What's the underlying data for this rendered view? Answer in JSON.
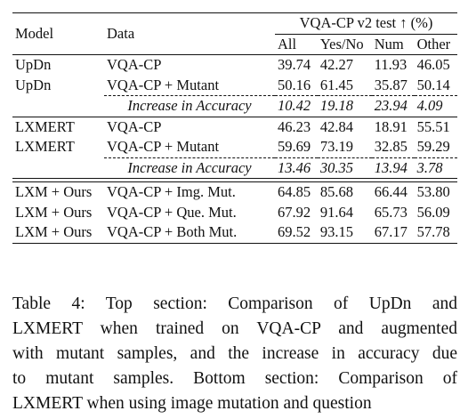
{
  "table": {
    "header": {
      "model": "Model",
      "data": "Data",
      "group": "VQA-CP v2 test ↑ (%)",
      "cols": [
        "All",
        "Yes/No",
        "Num",
        "Other"
      ]
    },
    "sections": [
      {
        "rows": [
          {
            "model": "UpDn",
            "data": "VQA-CP",
            "values": [
              "39.74",
              "42.27",
              "11.93",
              "46.05"
            ]
          },
          {
            "model": "UpDn",
            "data": "VQA-CP + Mutant",
            "values": [
              "50.16",
              "61.45",
              "35.87",
              "50.14"
            ]
          }
        ],
        "increase": {
          "label": "Increase in Accuracy",
          "values": [
            "10.42",
            "19.18",
            "23.94",
            "4.09"
          ]
        }
      },
      {
        "rows": [
          {
            "model": "LXMERT",
            "data": "VQA-CP",
            "values": [
              "46.23",
              "42.84",
              "18.91",
              "55.51"
            ]
          },
          {
            "model": "LXMERT",
            "data": "VQA-CP + Mutant",
            "values": [
              "59.69",
              "73.19",
              "32.85",
              "59.29"
            ]
          }
        ],
        "increase": {
          "label": "Increase in Accuracy",
          "values": [
            "13.46",
            "30.35",
            "13.94",
            "3.78"
          ]
        }
      },
      {
        "rows": [
          {
            "model": "LXM + Ours",
            "data": "VQA-CP + Img. Mut.",
            "values": [
              "64.85",
              "85.68",
              "66.44",
              "53.80"
            ]
          },
          {
            "model": "LXM + Ours",
            "data": "VQA-CP + Que. Mut.",
            "values": [
              "67.92",
              "91.64",
              "65.73",
              "56.09"
            ]
          },
          {
            "model": "LXM + Ours",
            "data": "VQA-CP + Both Mut.",
            "values": [
              "69.52",
              "93.15",
              "67.17",
              "57.78"
            ]
          }
        ]
      }
    ]
  },
  "caption": {
    "lines": [
      "Table 4:  Top section:  Comparison of UpDn and",
      "LXMERT when trained on VQA-CP and augmented",
      "with mutant samples, and the increase in accuracy due",
      "to mutant samples.  Bottom section: Comparison of",
      "LXMERT when using image mutation and question"
    ]
  }
}
